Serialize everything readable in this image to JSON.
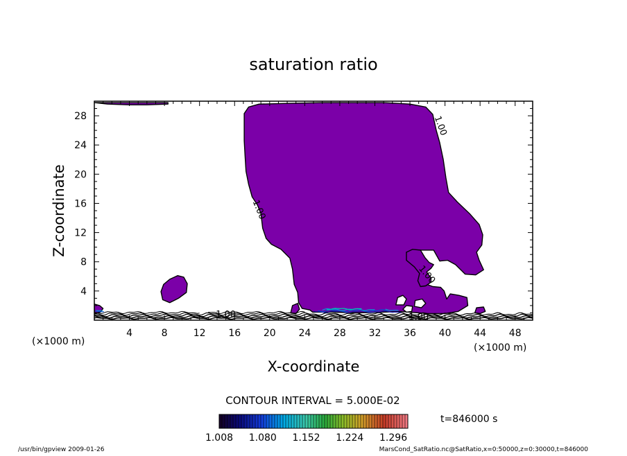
{
  "chart_data": {
    "type": "contour",
    "title": "saturation ratio",
    "xlabel": "X-coordinate",
    "ylabel": "Z-coordinate",
    "x_unit": "(×1000 m)",
    "y_unit": "(×1000 m)",
    "xlim": [
      0,
      50
    ],
    "ylim": [
      0,
      30
    ],
    "x_ticks": [
      4,
      8,
      12,
      16,
      20,
      24,
      28,
      32,
      36,
      40,
      44,
      48
    ],
    "y_ticks": [
      4,
      8,
      12,
      16,
      20,
      24,
      28
    ],
    "fill_color": "#7b00a8",
    "contour_level_label": "1.00",
    "contour_interval_text": "CONTOUR INTERVAL = 5.000E-02",
    "colorbar": {
      "tick_labels": [
        "1.008",
        "1.080",
        "1.152",
        "1.224",
        "1.296"
      ],
      "range": [
        1.008,
        1.32
      ]
    },
    "time_text": "t=846000 s",
    "footer_left": "/usr/bin/gpview  2009-01-26",
    "footer_right": "MarsCond_SatRatio.nc@SatRatio,x=0:50000,z=0:30000,t=846000",
    "regions": [
      {
        "name": "main-cloud",
        "outline": [
          [
            17.1,
            28.3
          ],
          [
            17.6,
            29.2
          ],
          [
            18.8,
            29.6
          ],
          [
            22,
            29.7
          ],
          [
            26,
            29.8
          ],
          [
            30,
            29.8
          ],
          [
            33,
            29.8
          ],
          [
            36,
            29.6
          ],
          [
            37.8,
            29.2
          ],
          [
            38.6,
            28.2
          ],
          [
            39,
            26
          ],
          [
            39.4,
            24.3
          ],
          [
            39.8,
            22
          ],
          [
            40.1,
            19.5
          ],
          [
            40.4,
            17.5
          ],
          [
            41.4,
            16.2
          ],
          [
            42.8,
            14.6
          ],
          [
            43.9,
            13.1
          ],
          [
            44.3,
            11.7
          ],
          [
            44.2,
            10.3
          ],
          [
            43.6,
            9.3
          ],
          [
            43.9,
            8.2
          ],
          [
            44.4,
            6.9
          ],
          [
            43.5,
            6.2
          ],
          [
            42.3,
            6.3
          ],
          [
            41.2,
            7.6
          ],
          [
            40.3,
            8.2
          ],
          [
            39.4,
            8.1
          ],
          [
            38.7,
            9.6
          ],
          [
            37,
            9.6
          ],
          [
            35.6,
            9.3
          ],
          [
            36.6,
            7.6
          ],
          [
            37.5,
            6.2
          ],
          [
            37.5,
            5.1
          ],
          [
            38.6,
            4.6
          ],
          [
            39.5,
            4.5
          ],
          [
            39.9,
            4
          ],
          [
            40.2,
            2.9
          ],
          [
            40.6,
            3.6
          ],
          [
            41.6,
            3.4
          ],
          [
            42.5,
            3.1
          ],
          [
            42.6,
            2
          ],
          [
            41.5,
            1.2
          ],
          [
            40,
            0.9
          ],
          [
            38,
            0.9
          ],
          [
            35,
            1.2
          ],
          [
            33,
            1.1
          ],
          [
            30,
            1
          ],
          [
            27,
            1.1
          ],
          [
            24.9,
            1.1
          ],
          [
            24.6,
            1.4
          ],
          [
            23.7,
            1.6
          ],
          [
            23.3,
            2.4
          ],
          [
            23.2,
            3.8
          ],
          [
            22.8,
            4.9
          ],
          [
            22.6,
            7
          ],
          [
            22.3,
            8.5
          ],
          [
            21.3,
            9.7
          ],
          [
            20.2,
            10.4
          ],
          [
            19.6,
            11.2
          ],
          [
            19.2,
            12.6
          ],
          [
            19,
            14.6
          ],
          [
            18.6,
            15.8
          ],
          [
            18,
            16.9
          ],
          [
            17.6,
            18.6
          ],
          [
            17.3,
            20.4
          ],
          [
            17.2,
            22.4
          ],
          [
            17.1,
            24.6
          ],
          [
            17.1,
            26.6
          ]
        ]
      },
      {
        "name": "white-hole",
        "outline": [
          [
            35.6,
            9.3
          ],
          [
            36.3,
            9.7
          ],
          [
            37.2,
            9.6
          ],
          [
            37.7,
            8.6
          ],
          [
            38.2,
            7.9
          ],
          [
            38.7,
            7.6
          ],
          [
            38.4,
            7.1
          ],
          [
            37.9,
            6.6
          ],
          [
            38.4,
            5.8
          ],
          [
            38.4,
            5.2
          ],
          [
            37.8,
            4.7
          ],
          [
            37.2,
            4.6
          ],
          [
            36.9,
            5.4
          ],
          [
            37.1,
            6.4
          ],
          [
            36.5,
            7.3
          ],
          [
            35.6,
            8.2
          ]
        ]
      },
      {
        "name": "small-cloud",
        "outline": [
          [
            7.8,
            2.8
          ],
          [
            7.6,
            3.9
          ],
          [
            7.9,
            4.9
          ],
          [
            8.6,
            5.6
          ],
          [
            9.5,
            6.1
          ],
          [
            10.2,
            5.9
          ],
          [
            10.6,
            5
          ],
          [
            10.5,
            3.8
          ],
          [
            9.6,
            3
          ],
          [
            8.6,
            2.4
          ]
        ]
      },
      {
        "name": "top-strip",
        "outline": [
          [
            0,
            29.8
          ],
          [
            1.5,
            29.6
          ],
          [
            4,
            29.5
          ],
          [
            6,
            29.5
          ],
          [
            8.4,
            29.6
          ],
          [
            8.4,
            29.8
          ]
        ]
      },
      {
        "name": "hole-left",
        "outline": [
          [
            34.4,
            2.1
          ],
          [
            34.6,
            3.1
          ],
          [
            35.2,
            3.4
          ],
          [
            35.6,
            2.9
          ],
          [
            35.3,
            2.1
          ]
        ]
      },
      {
        "name": "hole-right",
        "outline": [
          [
            36.5,
            1.9
          ],
          [
            36.6,
            2.7
          ],
          [
            37.4,
            2.9
          ],
          [
            37.8,
            2.3
          ],
          [
            37.3,
            1.7
          ]
        ]
      },
      {
        "name": "hole-bottom",
        "outline": [
          [
            35.2,
            1.5
          ],
          [
            35.6,
            2
          ],
          [
            36.3,
            1.9
          ],
          [
            36.2,
            1.2
          ],
          [
            35.6,
            1.1
          ]
        ]
      },
      {
        "name": "left-blob",
        "outline": [
          [
            0,
            0.9
          ],
          [
            0,
            2.2
          ],
          [
            0.6,
            2
          ],
          [
            1,
            1.6
          ],
          [
            0.7,
            1.1
          ]
        ]
      },
      {
        "name": "blob-23",
        "outline": [
          [
            22.4,
            1
          ],
          [
            22.6,
            2
          ],
          [
            23.2,
            2.3
          ],
          [
            23.4,
            1.5
          ],
          [
            23,
            0.9
          ]
        ]
      },
      {
        "name": "blob-42",
        "outline": [
          [
            43.4,
            1
          ],
          [
            43.6,
            1.7
          ],
          [
            44.4,
            1.8
          ],
          [
            44.6,
            1.2
          ],
          [
            44,
            0.9
          ]
        ]
      }
    ],
    "contour_labels": [
      {
        "text": "1.00",
        "x": 39.2,
        "y": 26.5,
        "rotate": 70
      },
      {
        "text": "1.00",
        "x": 18.5,
        "y": 15.0,
        "rotate": 68
      },
      {
        "text": "1.00",
        "x": 37.7,
        "y": 6.0,
        "rotate": 50
      },
      {
        "text": "1.00",
        "x": 15.0,
        "y": 0.4,
        "rotate": 0
      },
      {
        "text": "1.00",
        "x": 37.0,
        "y": 0.05,
        "rotate": 0
      }
    ]
  }
}
